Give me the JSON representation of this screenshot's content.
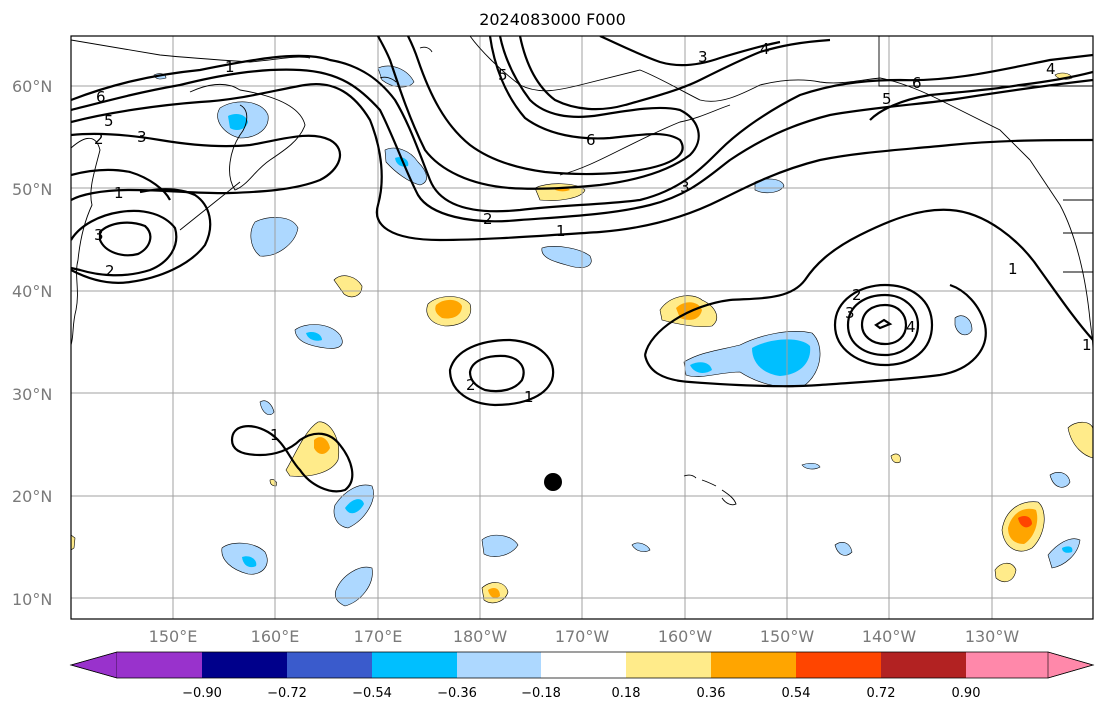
{
  "title": "2024083000 F000",
  "axes": {
    "lat_ticks": [
      "60°N",
      "50°N",
      "40°N",
      "30°N",
      "20°N",
      "10°N"
    ],
    "lon_ticks": [
      "150°E",
      "160°E",
      "170°E",
      "180°W",
      "170°W",
      "160°W",
      "150°W",
      "140°W",
      "130°W"
    ]
  },
  "colorbar": {
    "ticks": [
      "−0.90",
      "−0.72",
      "−0.54",
      "−0.36",
      "−0.18",
      "0.18",
      "0.36",
      "0.54",
      "0.72",
      "0.90"
    ],
    "colors": [
      "#9932cc",
      "#00008b",
      "#3a5bcc",
      "#00bfff",
      "#add8ff",
      "#ffffff",
      "#ffeb8a",
      "#ffa500",
      "#ff4500",
      "#b22222",
      "#ff88aa"
    ]
  },
  "contour_labels": {
    "values": [
      "1",
      "2",
      "3",
      "4",
      "5",
      "6"
    ]
  },
  "marker": {
    "type": "point",
    "color": "#000000"
  },
  "colors": {
    "blue_light": "#add8ff",
    "blue": "#00bfff",
    "yellow": "#ffeb8a",
    "orange": "#ffa500",
    "red": "#ff4500",
    "grid": "#a0a0a0",
    "label_gray": "#7a7a7a"
  }
}
